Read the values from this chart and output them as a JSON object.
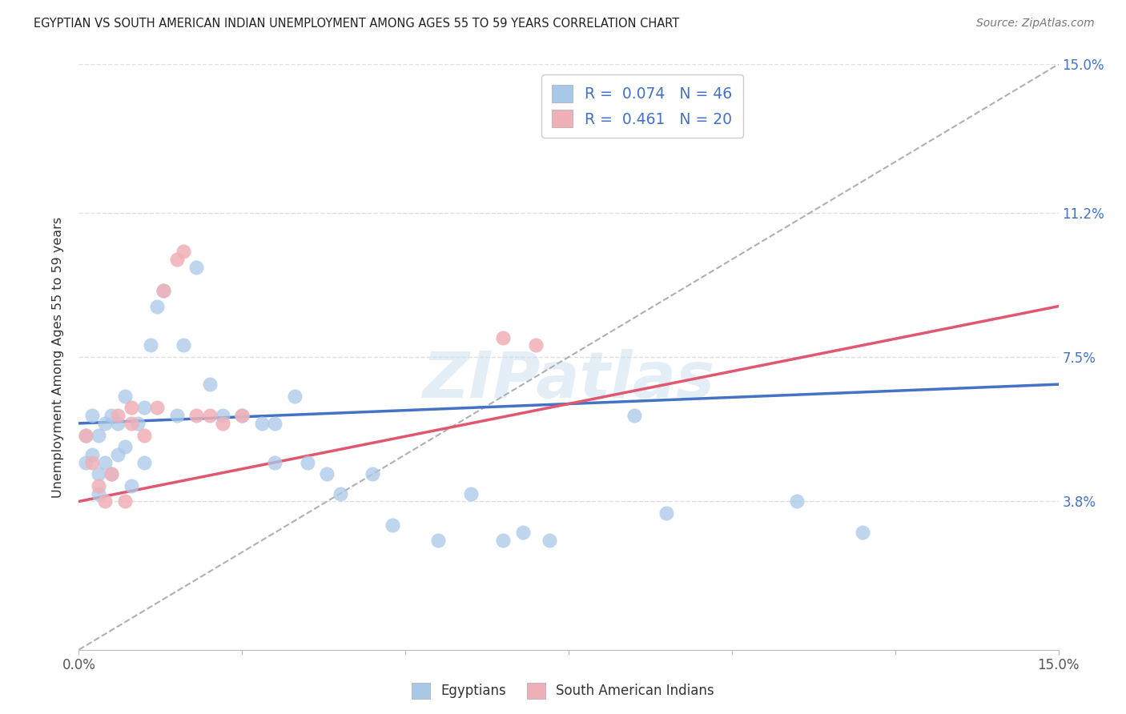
{
  "title": "EGYPTIAN VS SOUTH AMERICAN INDIAN UNEMPLOYMENT AMONG AGES 55 TO 59 YEARS CORRELATION CHART",
  "source": "Source: ZipAtlas.com",
  "ylabel": "Unemployment Among Ages 55 to 59 years",
  "ytick_labels": [
    "3.8%",
    "7.5%",
    "11.2%",
    "15.0%"
  ],
  "ytick_values": [
    0.038,
    0.075,
    0.112,
    0.15
  ],
  "xmin": 0.0,
  "xmax": 0.15,
  "ymin": 0.0,
  "ymax": 0.15,
  "blue_color": "#a8c8e8",
  "pink_color": "#f0b0b8",
  "blue_line_color": "#4472c4",
  "pink_line_color": "#e05870",
  "dashed_line_color": "#b0b0b0",
  "watermark": "ZIPatlas",
  "background_color": "#ffffff",
  "grid_color": "#e0e0e0",
  "blue_line_x0": 0.0,
  "blue_line_y0": 0.058,
  "blue_line_x1": 0.15,
  "blue_line_y1": 0.068,
  "pink_line_x0": 0.0,
  "pink_line_y0": 0.038,
  "pink_line_x1": 0.15,
  "pink_line_y1": 0.088,
  "egyptians_x": [
    0.001,
    0.001,
    0.002,
    0.002,
    0.003,
    0.003,
    0.003,
    0.004,
    0.004,
    0.005,
    0.005,
    0.006,
    0.006,
    0.007,
    0.007,
    0.008,
    0.009,
    0.01,
    0.01,
    0.011,
    0.012,
    0.013,
    0.015,
    0.016,
    0.018,
    0.02,
    0.022,
    0.025,
    0.028,
    0.03,
    0.03,
    0.033,
    0.035,
    0.038,
    0.04,
    0.045,
    0.048,
    0.055,
    0.06,
    0.065,
    0.068,
    0.072,
    0.085,
    0.09,
    0.11,
    0.12
  ],
  "egyptians_y": [
    0.055,
    0.048,
    0.06,
    0.05,
    0.055,
    0.045,
    0.04,
    0.058,
    0.048,
    0.06,
    0.045,
    0.05,
    0.058,
    0.065,
    0.052,
    0.042,
    0.058,
    0.062,
    0.048,
    0.078,
    0.088,
    0.092,
    0.06,
    0.078,
    0.098,
    0.068,
    0.06,
    0.06,
    0.058,
    0.058,
    0.048,
    0.065,
    0.048,
    0.045,
    0.04,
    0.045,
    0.032,
    0.028,
    0.04,
    0.028,
    0.03,
    0.028,
    0.06,
    0.035,
    0.038,
    0.03
  ],
  "south_american_x": [
    0.001,
    0.002,
    0.003,
    0.004,
    0.005,
    0.006,
    0.007,
    0.008,
    0.008,
    0.01,
    0.012,
    0.013,
    0.015,
    0.016,
    0.018,
    0.02,
    0.022,
    0.025,
    0.065,
    0.07
  ],
  "south_american_y": [
    0.055,
    0.048,
    0.042,
    0.038,
    0.045,
    0.06,
    0.038,
    0.058,
    0.062,
    0.055,
    0.062,
    0.092,
    0.1,
    0.102,
    0.06,
    0.06,
    0.058,
    0.06,
    0.08,
    0.078
  ]
}
